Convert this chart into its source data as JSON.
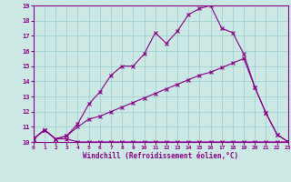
{
  "xlabel": "Windchill (Refroidissement éolien,°C)",
  "bg_color": "#cce8e4",
  "line_color": "#880088",
  "grid_color": "#99cccc",
  "xlim": [
    0,
    23
  ],
  "ylim": [
    10,
    19
  ],
  "xticks": [
    0,
    1,
    2,
    3,
    4,
    5,
    6,
    7,
    8,
    9,
    10,
    11,
    12,
    13,
    14,
    15,
    16,
    17,
    18,
    19,
    20,
    21,
    22,
    23
  ],
  "yticks": [
    10,
    11,
    12,
    13,
    14,
    15,
    16,
    17,
    18,
    19
  ],
  "line1_x": [
    0,
    1,
    2,
    3,
    4,
    5,
    6,
    7,
    8,
    9,
    10,
    11,
    12,
    13,
    14,
    15,
    16,
    17,
    18,
    19,
    20,
    21,
    22,
    23
  ],
  "line1_y": [
    10.2,
    10.8,
    10.2,
    10.2,
    10.0,
    10.0,
    10.0,
    10.0,
    10.0,
    10.0,
    10.0,
    10.0,
    10.0,
    10.0,
    10.0,
    10.0,
    10.0,
    10.0,
    10.0,
    10.0,
    10.0,
    10.0,
    10.0,
    10.0
  ],
  "line2_x": [
    0,
    1,
    2,
    3,
    4,
    5,
    6,
    7,
    8,
    9,
    10,
    11,
    12,
    13,
    14,
    15,
    16,
    17,
    18,
    19,
    20,
    21,
    22,
    23
  ],
  "line2_y": [
    10.2,
    10.8,
    10.2,
    10.4,
    11.0,
    11.5,
    11.7,
    12.0,
    12.3,
    12.6,
    12.9,
    13.2,
    13.5,
    13.8,
    14.1,
    14.4,
    14.6,
    14.9,
    15.2,
    15.5,
    13.6,
    11.9,
    10.5,
    10.0
  ],
  "line3_x": [
    0,
    1,
    2,
    3,
    4,
    5,
    6,
    7,
    8,
    9,
    10,
    11,
    12,
    13,
    14,
    15,
    16,
    17,
    18,
    19,
    20,
    21,
    22,
    23
  ],
  "line3_y": [
    10.2,
    10.8,
    10.2,
    10.4,
    11.2,
    12.5,
    13.3,
    14.4,
    15.0,
    15.0,
    15.8,
    17.2,
    16.5,
    17.3,
    18.4,
    18.8,
    19.0,
    17.5,
    17.2,
    15.8,
    13.6,
    11.9,
    10.5,
    10.0
  ]
}
